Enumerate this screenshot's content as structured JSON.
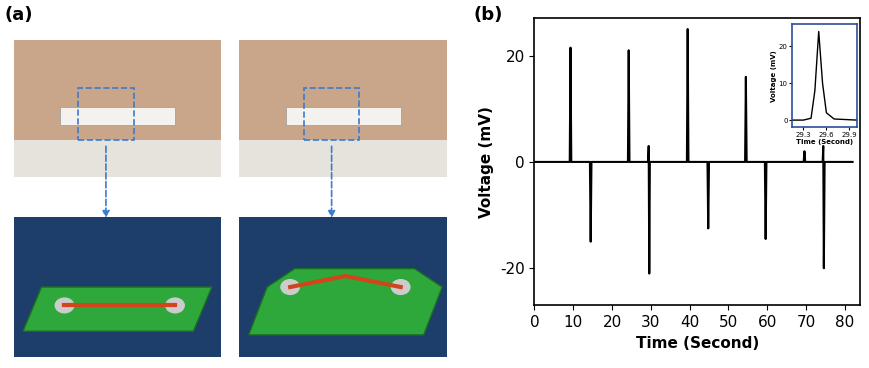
{
  "panel_labels": [
    "(a)",
    "(b)"
  ],
  "chart_data": [
    {
      "type": "line",
      "xlabel": "Time (Second)",
      "ylabel": "Voltage (mV)",
      "xlim": [
        0,
        84
      ],
      "ylim": [
        -27,
        27
      ],
      "xticks": [
        0,
        10,
        20,
        30,
        40,
        50,
        60,
        70,
        80
      ],
      "yticks": [
        -20,
        0,
        20
      ],
      "series": [
        {
          "color": "#000000",
          "x": [
            0,
            9.1,
            9.3,
            9.5,
            14.3,
            14.5,
            14.7,
            24.1,
            24.3,
            24.5,
            29.3,
            29.45,
            29.6,
            29.75,
            39.3,
            39.5,
            39.7,
            44.6,
            44.8,
            45.0,
            54.3,
            54.5,
            54.7,
            59.4,
            59.6,
            59.8,
            69.4,
            69.6,
            69.8,
            74.3,
            74.45,
            74.6,
            74.8,
            82
          ],
          "values": [
            0,
            0,
            21.5,
            0,
            0,
            -15,
            0,
            0,
            21,
            0,
            0,
            3,
            -21,
            0,
            0,
            25,
            0,
            0,
            -12.5,
            0,
            0,
            16,
            0,
            0,
            -14.5,
            0,
            0,
            2,
            0,
            0,
            3,
            -20,
            0,
            0
          ]
        }
      ]
    },
    {
      "type": "line",
      "xlabel": "Time (Second)",
      "ylabel": "Voltage (mV)",
      "xlim": [
        29.15,
        30.0
      ],
      "ylim": [
        -2,
        26
      ],
      "xticks": [
        29.3,
        29.6,
        29.9
      ],
      "yticks": [
        0,
        10,
        20
      ],
      "series": [
        {
          "color": "#000000",
          "x": [
            29.15,
            29.3,
            29.4,
            29.45,
            29.5,
            29.55,
            29.6,
            29.7,
            30.0
          ],
          "values": [
            0,
            0,
            0.5,
            8,
            24,
            10,
            2,
            0.3,
            0
          ]
        }
      ]
    }
  ]
}
